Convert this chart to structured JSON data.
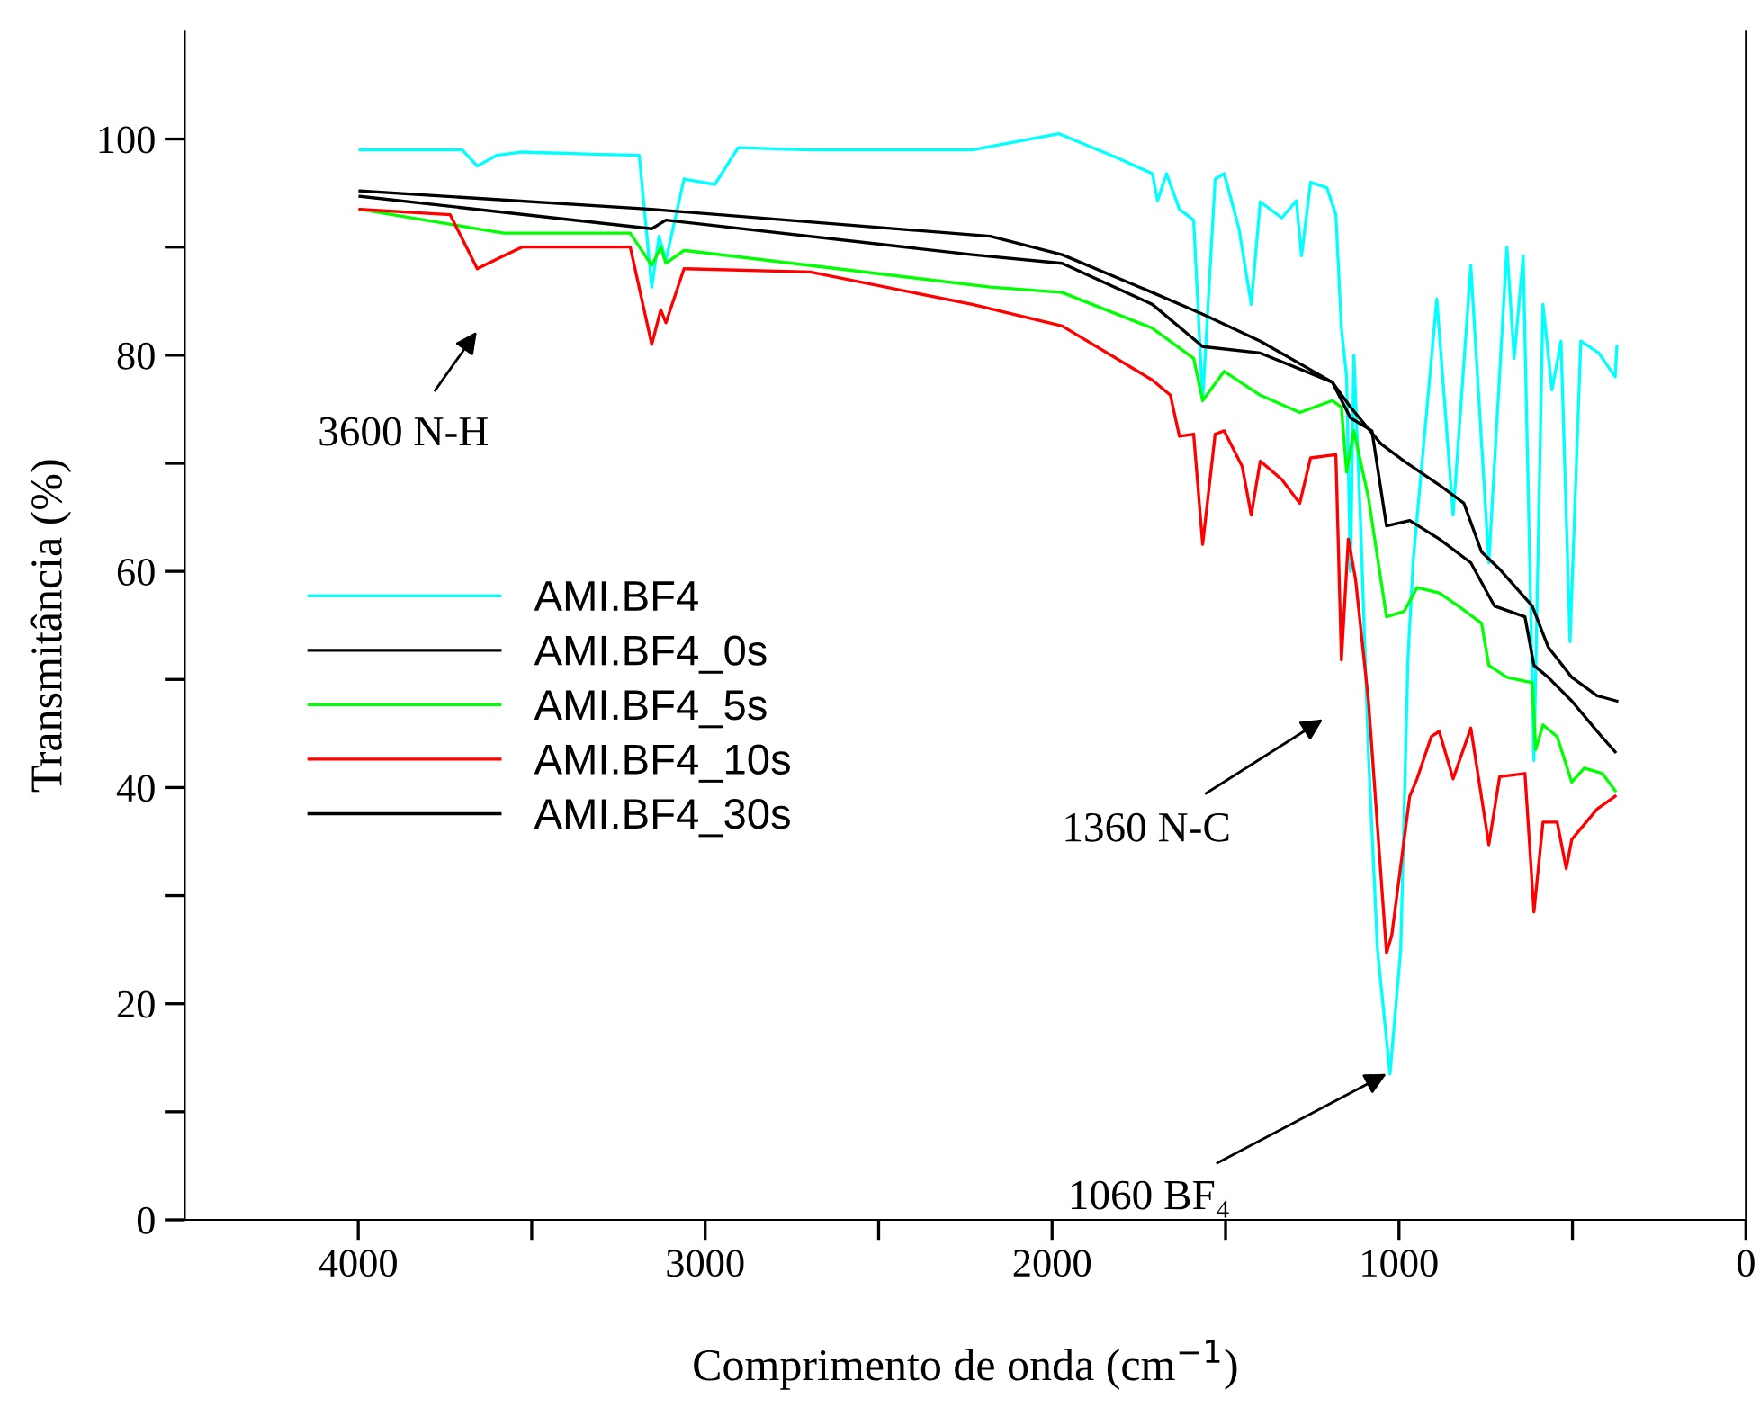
{
  "chart_data": {
    "type": "line",
    "xlabel": "Comprimento de onda (cm$^{−1}$)",
    "ylabel": "Transmitância (%)",
    "xlim": [
      4500,
      0
    ],
    "xticks": [
      4000,
      {
        "value": 3500,
        "label": null
      },
      3000,
      {
        "value": 2500,
        "label": null
      },
      2000,
      {
        "value": 1500,
        "label": null
      },
      1000,
      {
        "value": 500,
        "label": null
      },
      0
    ],
    "ylim": [
      0,
      110
    ],
    "yticks": [
      0,
      {
        "value": 10,
        "label": null
      },
      20,
      {
        "value": 30,
        "label": null
      },
      40,
      {
        "value": 50,
        "label": null
      },
      60,
      {
        "value": 70,
        "label": null
      },
      80,
      {
        "value": 90,
        "label": null
      },
      100
    ],
    "grid": false,
    "legend": "center left",
    "marker": "none",
    "line_style": "solid",
    "series": [
      {
        "name": "AMI.BF4",
        "color": "#00ffff",
        "x": [
          3995,
          3700,
          3657,
          3600,
          3528,
          3320,
          3190,
          3154,
          3133,
          3113,
          3061,
          2972,
          2905,
          2697,
          2438,
          2230,
          1981,
          1815,
          1711,
          1696,
          1670,
          1633,
          1592,
          1566,
          1530,
          1504,
          1462,
          1426,
          1400,
          1338,
          1296,
          1281,
          1255,
          1208,
          1182,
          1166,
          1151,
          1140,
          1130,
          1109,
          1088,
          1062,
          1026,
          995,
          974,
          959,
          891,
          844,
          793,
          741,
          689,
          668,
          642,
          611,
          585,
          559,
          533,
          507,
          476,
          424,
          377,
          372
        ],
        "values": [
          99,
          99,
          97.5,
          98.5,
          98.8,
          98.6,
          98.5,
          86.3,
          91,
          88.8,
          96.3,
          95.8,
          99.2,
          99,
          99,
          99,
          100.5,
          98.3,
          96.8,
          94.3,
          96.8,
          93.5,
          92.5,
          75.8,
          96.3,
          96.8,
          91.8,
          84.7,
          94.2,
          92.7,
          94.3,
          89.2,
          96,
          95.5,
          93,
          82.5,
          78,
          60,
          80,
          63,
          43,
          25,
          13.5,
          25,
          52,
          61,
          85.2,
          65.2,
          88.3,
          60.8,
          90,
          79.7,
          89.2,
          42.5,
          84.7,
          76.8,
          81.3,
          53.5,
          81.3,
          80.2,
          78,
          80.8
        ]
      },
      {
        "name": "AMI.BF4_0s",
        "color": "#000000",
        "x": [
          3995,
          3154,
          2178,
          1971,
          1711,
          1566,
          1400,
          1192,
          1140,
          1052,
          985,
          884,
          813,
          762,
          710,
          616,
          570,
          502,
          429,
          372
        ],
        "values": [
          95.2,
          93.5,
          91,
          89.3,
          85.8,
          83.8,
          81.3,
          77.5,
          75.2,
          71.8,
          70.2,
          68,
          66.3,
          61.8,
          60.2,
          56.8,
          53,
          50.2,
          48.5,
          48
        ]
      },
      {
        "name": "AMI.BF4_5s",
        "color": "#00ff00",
        "x": [
          3995,
          3657,
          3580,
          3216,
          3154,
          3128,
          3113,
          3061,
          2178,
          1971,
          1711,
          1592,
          1566,
          1504,
          1400,
          1286,
          1192,
          1166,
          1151,
          1130,
          1088,
          1036,
          985,
          948,
          884,
          829,
          762,
          741,
          689,
          616,
          606,
          585,
          544,
          502,
          466,
          414,
          377
        ],
        "values": [
          93.5,
          91.7,
          91.3,
          91.3,
          88.3,
          90,
          88.5,
          89.7,
          86.3,
          85.8,
          82.5,
          79.7,
          75.8,
          78.5,
          76.3,
          74.7,
          75.8,
          75.2,
          69.2,
          73,
          66.8,
          55.8,
          56.3,
          58.5,
          58,
          56.8,
          55.2,
          51.3,
          50.2,
          49.7,
          43.5,
          45.8,
          44.7,
          40.5,
          41.8,
          41.3,
          39.7
        ]
      },
      {
        "name": "AMI.BF4_10s",
        "color": "#ff0000",
        "x": [
          3995,
          3735,
          3657,
          3580,
          3528,
          3216,
          3154,
          3128,
          3113,
          3061,
          2697,
          2230,
          1971,
          1711,
          1659,
          1633,
          1592,
          1566,
          1530,
          1504,
          1452,
          1426,
          1400,
          1338,
          1286,
          1255,
          1182,
          1166,
          1146,
          1125,
          1088,
          1036,
          1021,
          969,
          948,
          907,
          884,
          844,
          793,
          741,
          710,
          637,
          611,
          585,
          544,
          518,
          502,
          429,
          377
        ],
        "values": [
          93.5,
          93,
          88,
          89.2,
          90,
          90,
          81,
          84.2,
          83,
          88,
          87.7,
          84.7,
          82.7,
          77.7,
          76.3,
          72.5,
          72.7,
          62.5,
          72.7,
          73,
          69.7,
          65.2,
          70.2,
          68.5,
          66.3,
          70.5,
          70.8,
          51.8,
          63,
          59.2,
          48,
          24.7,
          26.3,
          39.2,
          40.8,
          44.7,
          45.2,
          40.8,
          45.5,
          34.7,
          41,
          41.3,
          28.5,
          36.8,
          36.8,
          32.5,
          35.2,
          38,
          39.2
        ]
      },
      {
        "name": "AMI.BF4_30s",
        "color": "#000000",
        "x": [
          3995,
          3154,
          3113,
          2230,
          1971,
          1711,
          1566,
          1400,
          1192,
          1140,
          1078,
          1036,
          969,
          884,
          793,
          725,
          637,
          611,
          570,
          502,
          429,
          377
        ],
        "values": [
          94.7,
          91.7,
          92.5,
          89.3,
          88.5,
          84.7,
          80.8,
          80.2,
          77.5,
          74.2,
          73,
          64.2,
          64.7,
          63,
          60.8,
          56.8,
          55.8,
          51.3,
          50.2,
          48,
          45.2,
          43.3
        ]
      }
    ],
    "annotations": [
      "3600 N-H",
      "1360 N-C",
      {
        "text": "1060 BF₄",
        "x": 1036,
        "y": 13.5
      }
    ]
  }
}
